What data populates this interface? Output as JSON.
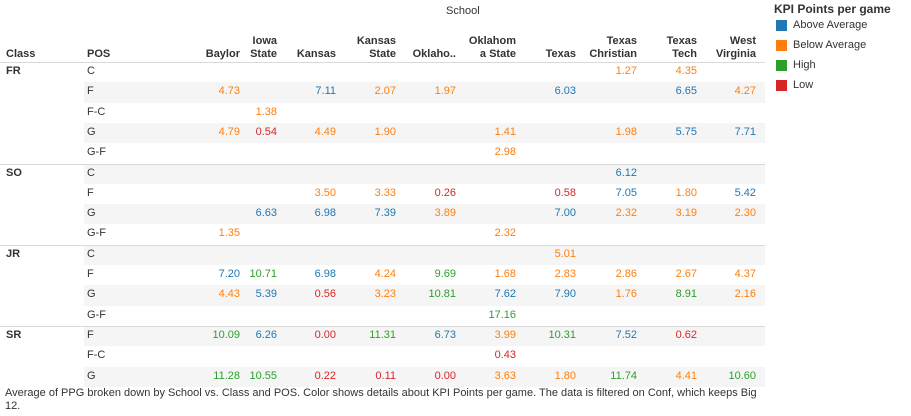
{
  "colors": {
    "Above Average": "#1f77b4",
    "Below Average": "#ff7f0e",
    "High": "#2ca02c",
    "Low": "#d62728"
  },
  "header": {
    "top_title": "School",
    "class_label": "Class",
    "pos_label": "POS"
  },
  "legend": {
    "title": "KPI Points per game",
    "items": [
      "Above Average",
      "Below Average",
      "High",
      "Low"
    ]
  },
  "caption": "Average of PPG broken down by School vs. Class and POS.  Color shows details about KPI Points per game. The data is filtered on Conf, which keeps Big 12.",
  "chart_data": {
    "type": "table",
    "columns": [
      {
        "lines": [
          "Baylor"
        ]
      },
      {
        "lines": [
          "Iowa",
          "State"
        ]
      },
      {
        "lines": [
          "Kansas"
        ]
      },
      {
        "lines": [
          "Kansas",
          "State"
        ]
      },
      {
        "lines": [
          "Oklaho.."
        ]
      },
      {
        "lines": [
          "Oklahom",
          "a State"
        ]
      },
      {
        "lines": [
          "Texas"
        ]
      },
      {
        "lines": [
          "Texas",
          "Christian"
        ]
      },
      {
        "lines": [
          "Texas",
          "Tech"
        ]
      },
      {
        "lines": [
          "West",
          "Virginia"
        ]
      }
    ],
    "rows": [
      {
        "class": "FR",
        "pos": "C",
        "cells": [
          null,
          null,
          null,
          null,
          null,
          null,
          null,
          [
            "1.27",
            "Below Average"
          ],
          [
            "4.35",
            "Below Average"
          ],
          null
        ]
      },
      {
        "class": "",
        "pos": "F",
        "cells": [
          [
            "4.73",
            "Below Average"
          ],
          null,
          [
            "7.11",
            "Above Average"
          ],
          [
            "2.07",
            "Below Average"
          ],
          [
            "1.97",
            "Below Average"
          ],
          null,
          [
            "6.03",
            "Above Average"
          ],
          null,
          [
            "6.65",
            "Above Average"
          ],
          [
            "4.27",
            "Below Average"
          ]
        ]
      },
      {
        "class": "",
        "pos": "F-C",
        "cells": [
          null,
          [
            "1.38",
            "Below Average"
          ],
          null,
          null,
          null,
          null,
          null,
          null,
          null,
          null
        ]
      },
      {
        "class": "",
        "pos": "G",
        "cells": [
          [
            "4.79",
            "Below Average"
          ],
          [
            "0.54",
            "Low"
          ],
          [
            "4.49",
            "Below Average"
          ],
          [
            "1.90",
            "Below Average"
          ],
          null,
          [
            "1.41",
            "Below Average"
          ],
          null,
          [
            "1.98",
            "Below Average"
          ],
          [
            "5.75",
            "Above Average"
          ],
          [
            "7.71",
            "Above Average"
          ]
        ]
      },
      {
        "class": "",
        "pos": "G-F",
        "cells": [
          null,
          null,
          null,
          null,
          null,
          [
            "2.98",
            "Below Average"
          ],
          null,
          null,
          null,
          null
        ]
      },
      {
        "class": "SO",
        "pos": "C",
        "cells": [
          null,
          null,
          null,
          null,
          null,
          null,
          null,
          [
            "6.12",
            "Above Average"
          ],
          null,
          null
        ]
      },
      {
        "class": "",
        "pos": "F",
        "cells": [
          null,
          null,
          [
            "3.50",
            "Below Average"
          ],
          [
            "3.33",
            "Below Average"
          ],
          [
            "0.26",
            "Low"
          ],
          null,
          [
            "0.58",
            "Low"
          ],
          [
            "7.05",
            "Above Average"
          ],
          [
            "1.80",
            "Below Average"
          ],
          [
            "5.42",
            "Above Average"
          ]
        ]
      },
      {
        "class": "",
        "pos": "G",
        "cells": [
          null,
          [
            "6.63",
            "Above Average"
          ],
          [
            "6.98",
            "Above Average"
          ],
          [
            "7.39",
            "Above Average"
          ],
          [
            "3.89",
            "Below Average"
          ],
          null,
          [
            "7.00",
            "Above Average"
          ],
          [
            "2.32",
            "Below Average"
          ],
          [
            "3.19",
            "Below Average"
          ],
          [
            "2.30",
            "Below Average"
          ]
        ]
      },
      {
        "class": "",
        "pos": "G-F",
        "cells": [
          [
            "1.35",
            "Below Average"
          ],
          null,
          null,
          null,
          null,
          [
            "2.32",
            "Below Average"
          ],
          null,
          null,
          null,
          null
        ]
      },
      {
        "class": "JR",
        "pos": "C",
        "cells": [
          null,
          null,
          null,
          null,
          null,
          null,
          [
            "5.01",
            "Below Average"
          ],
          null,
          null,
          null
        ]
      },
      {
        "class": "",
        "pos": "F",
        "cells": [
          [
            "7.20",
            "Above Average"
          ],
          [
            "10.71",
            "High"
          ],
          [
            "6.98",
            "Above Average"
          ],
          [
            "4.24",
            "Below Average"
          ],
          [
            "9.69",
            "High"
          ],
          [
            "1.68",
            "Below Average"
          ],
          [
            "2.83",
            "Below Average"
          ],
          [
            "2.86",
            "Below Average"
          ],
          [
            "2.67",
            "Below Average"
          ],
          [
            "4.37",
            "Below Average"
          ]
        ]
      },
      {
        "class": "",
        "pos": "G",
        "cells": [
          [
            "4.43",
            "Below Average"
          ],
          [
            "5.39",
            "Above Average"
          ],
          [
            "0.56",
            "Low"
          ],
          [
            "3.23",
            "Below Average"
          ],
          [
            "10.81",
            "High"
          ],
          [
            "7.62",
            "Above Average"
          ],
          [
            "7.90",
            "Above Average"
          ],
          [
            "1.76",
            "Below Average"
          ],
          [
            "8.91",
            "High"
          ],
          [
            "2.16",
            "Below Average"
          ]
        ]
      },
      {
        "class": "",
        "pos": "G-F",
        "cells": [
          null,
          null,
          null,
          null,
          null,
          [
            "17.16",
            "High"
          ],
          null,
          null,
          null,
          null
        ]
      },
      {
        "class": "SR",
        "pos": "F",
        "cells": [
          [
            "10.09",
            "High"
          ],
          [
            "6.26",
            "Above Average"
          ],
          [
            "0.00",
            "Low"
          ],
          [
            "11.31",
            "High"
          ],
          [
            "6.73",
            "Above Average"
          ],
          [
            "3.99",
            "Below Average"
          ],
          [
            "10.31",
            "High"
          ],
          [
            "7.52",
            "Above Average"
          ],
          [
            "0.62",
            "Low"
          ],
          null
        ]
      },
      {
        "class": "",
        "pos": "F-C",
        "cells": [
          null,
          null,
          null,
          null,
          null,
          [
            "0.43",
            "Low"
          ],
          null,
          null,
          null,
          null
        ]
      },
      {
        "class": "",
        "pos": "G",
        "cells": [
          [
            "11.28",
            "High"
          ],
          [
            "10.55",
            "High"
          ],
          [
            "0.22",
            "Low"
          ],
          [
            "0.11",
            "Low"
          ],
          [
            "0.00",
            "Low"
          ],
          [
            "3.63",
            "Below Average"
          ],
          [
            "1.80",
            "Below Average"
          ],
          [
            "11.74",
            "High"
          ],
          [
            "4.41",
            "Below Average"
          ],
          [
            "10.60",
            "High"
          ]
        ]
      }
    ]
  }
}
